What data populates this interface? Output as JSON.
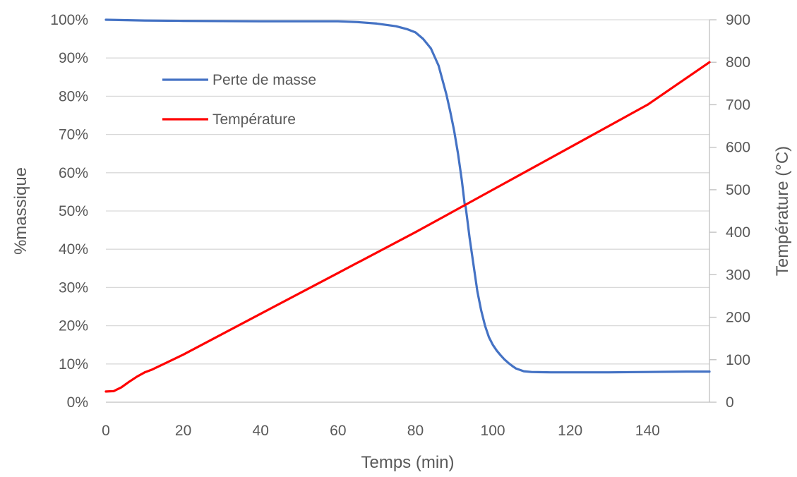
{
  "chart_data": {
    "type": "line",
    "title": "",
    "xlabel": "Temps (min)",
    "ylabel_left": "%massique",
    "ylabel_right": "Température (°C)",
    "xlim": [
      0,
      156
    ],
    "ylim_left": [
      0,
      100
    ],
    "ylim_right": [
      0,
      900
    ],
    "x_ticks": [
      0,
      20,
      40,
      60,
      80,
      100,
      120,
      140
    ],
    "y_left_ticks": [
      0,
      10,
      20,
      30,
      40,
      50,
      60,
      70,
      80,
      90,
      100
    ],
    "y_left_tick_labels": [
      "0%",
      "10%",
      "20%",
      "30%",
      "40%",
      "50%",
      "60%",
      "70%",
      "80%",
      "90%",
      "100%"
    ],
    "y_right_ticks": [
      0,
      100,
      200,
      300,
      400,
      500,
      600,
      700,
      800,
      900
    ],
    "grid": "horizontal",
    "legend_position": "upper-left (inside plot)",
    "series": [
      {
        "name": "Perte de masse",
        "axis": "left",
        "color": "#4472C4",
        "x": [
          0,
          10,
          20,
          40,
          60,
          65,
          70,
          75,
          78,
          80,
          82,
          84,
          86,
          88,
          89,
          90,
          91,
          92,
          92.7,
          93,
          93.5,
          94,
          95,
          96,
          97,
          98,
          99,
          100,
          101,
          102,
          103,
          104,
          105,
          106,
          108,
          110,
          115,
          120,
          130,
          140,
          150,
          156
        ],
        "y": [
          100,
          99.8,
          99.7,
          99.6,
          99.6,
          99.4,
          99,
          98.3,
          97.5,
          96.7,
          95,
          92.5,
          88,
          80.5,
          76,
          71,
          65,
          58,
          52,
          51,
          47,
          43,
          36,
          29,
          24,
          20,
          17,
          15,
          13.5,
          12.3,
          11.2,
          10.3,
          9.5,
          8.8,
          8.1,
          7.9,
          7.8,
          7.8,
          7.8,
          7.9,
          8,
          8
        ]
      },
      {
        "name": "Température",
        "axis": "right",
        "color": "#FF0000",
        "x": [
          0,
          2,
          4,
          6,
          8,
          10,
          12,
          20,
          40,
          60,
          80,
          93,
          100,
          120,
          140,
          156
        ],
        "y": [
          25,
          26,
          35,
          48,
          60,
          70,
          77,
          112,
          208,
          304,
          400,
          465,
          500,
          600,
          700,
          800
        ]
      }
    ]
  }
}
